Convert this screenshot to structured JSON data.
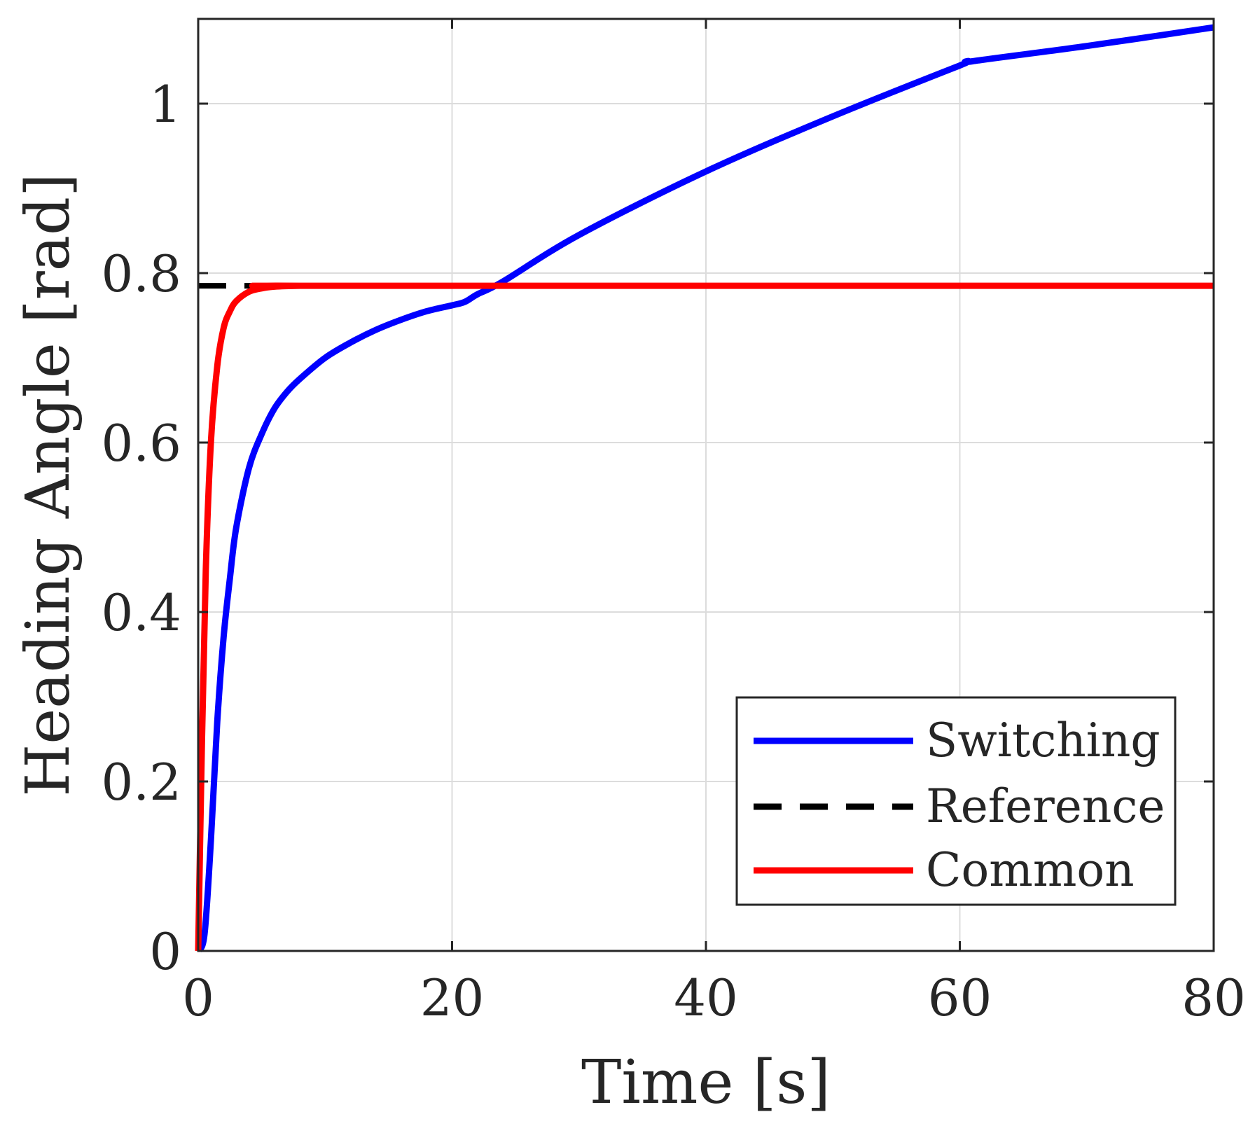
{
  "chart_data": {
    "type": "line",
    "title": "",
    "xlabel": "Time [s]",
    "ylabel": "Heading Angle [rad]",
    "xlim": [
      0,
      80
    ],
    "ylim": [
      0,
      1.1
    ],
    "xticks": [
      0,
      20,
      40,
      60,
      80
    ],
    "xtick_labels": [
      "0",
      "20",
      "40",
      "60",
      "80"
    ],
    "yticks": [
      0,
      0.2,
      0.4,
      0.6,
      0.8,
      1
    ],
    "ytick_labels": [
      "0",
      "0.2",
      "0.4",
      "0.6",
      "0.8",
      "1"
    ],
    "grid": true,
    "legend_position": "bottom-right",
    "series": [
      {
        "name": "Switching",
        "color": "#0000ff",
        "style": "solid",
        "x": [
          0,
          0.5,
          1,
          1.5,
          2,
          2.5,
          3,
          4,
          5,
          6,
          7,
          8,
          10,
          12,
          14,
          16,
          18,
          20,
          21,
          22,
          24,
          30,
          40,
          50,
          60,
          61,
          70,
          80
        ],
        "y": [
          0,
          0.02,
          0.13,
          0.27,
          0.37,
          0.44,
          0.5,
          0.57,
          0.61,
          0.64,
          0.66,
          0.675,
          0.7,
          0.718,
          0.733,
          0.745,
          0.755,
          0.762,
          0.766,
          0.775,
          0.79,
          0.845,
          0.92,
          0.985,
          1.045,
          1.05,
          1.068,
          1.09
        ]
      },
      {
        "name": "Reference",
        "color": "#000000",
        "style": "dashed",
        "x": [
          0,
          7.2
        ],
        "y": [
          0.785,
          0.785
        ]
      },
      {
        "name": "Common",
        "color": "#ff0000",
        "style": "solid",
        "x": [
          0,
          0.3,
          0.6,
          1,
          1.5,
          2,
          2.5,
          3,
          4,
          5,
          6,
          8,
          10,
          80
        ],
        "y": [
          0,
          0.25,
          0.45,
          0.6,
          0.69,
          0.735,
          0.755,
          0.767,
          0.778,
          0.782,
          0.784,
          0.785,
          0.785,
          0.785
        ]
      }
    ]
  }
}
